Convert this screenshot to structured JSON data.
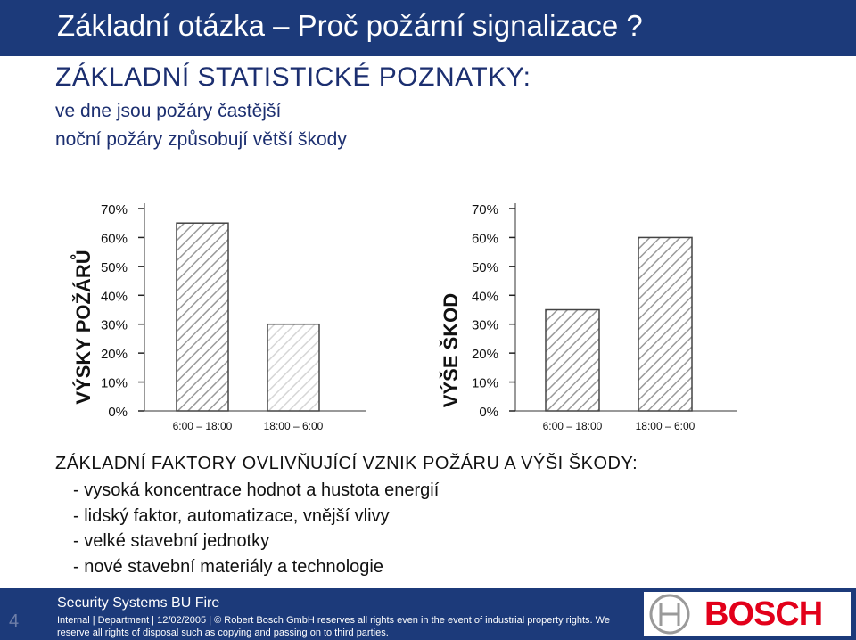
{
  "header": {
    "title": "Základní otázka – Proč požární signalizace ?"
  },
  "intro": {
    "heading": "ZÁKLADNÍ STATISTICKÉ POZNATKY:",
    "lines": [
      "ve dne jsou požáry častější",
      "noční požáry způsobují větší škody"
    ]
  },
  "chart_data": [
    {
      "type": "bar",
      "ylabel": "VÝSKY POŽÁRŮ",
      "categories": [
        "6:00 – 18:00",
        "18:00 – 6:00"
      ],
      "values": [
        65,
        30
      ],
      "ylim": [
        0,
        70
      ],
      "yticks": [
        "0%",
        "10%",
        "20%",
        "30%",
        "40%",
        "50%",
        "60%",
        "70%"
      ],
      "fill": [
        "hatched",
        "hatched-light"
      ]
    },
    {
      "type": "bar",
      "ylabel": "VÝŠE ŠKOD",
      "categories": [
        "6:00 – 18:00",
        "18:00 – 6:00"
      ],
      "values": [
        35,
        60
      ],
      "ylim": [
        0,
        70
      ],
      "yticks": [
        "0%",
        "10%",
        "20%",
        "30%",
        "40%",
        "50%",
        "60%",
        "70%"
      ],
      "fill": [
        "hatched",
        "hatched"
      ]
    }
  ],
  "factors": {
    "heading": "ZÁKLADNÍ FAKTORY OVLIVŇUJÍCÍ VZNIK POŽÁRU A VÝŠI ŠKODY:",
    "items": [
      "- vysoká koncentrace hodnot a hustota energií",
      "- lidský faktor, automatizace, vnější vlivy",
      "- velké stavební jednotky",
      "- nové stavební materiály a technologie"
    ]
  },
  "footer": {
    "slide_number": "4",
    "section": "Security Systems BU Fire",
    "legal": "Internal | Department | 12/02/2005 | © Robert Bosch GmbH reserves all rights even in the event of industrial property rights. We reserve all rights of disposal such as copying and passing on to third parties.",
    "logo_text": "BOSCH"
  },
  "colors": {
    "title_bar": "#1c3a7a",
    "text_blue": "#1c2f70",
    "brand_red": "#e2001a"
  }
}
